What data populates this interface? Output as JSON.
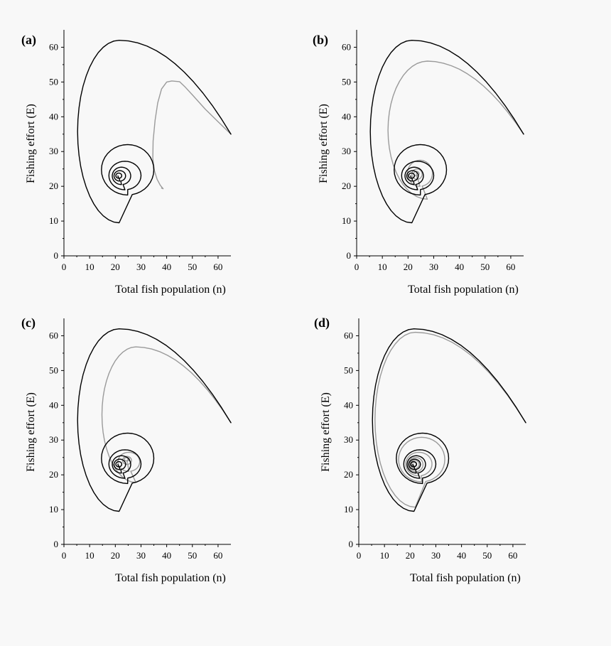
{
  "figure": {
    "background": "#f8f8f8",
    "primary_color": "#000000",
    "secondary_color": "#9a9a9a"
  },
  "chart_data": [
    {
      "type": "line",
      "panel_label": "(a)",
      "xlabel": "Total fish population (n)",
      "ylabel": "Fishing effort (E)",
      "xlim": [
        0,
        65
      ],
      "ylim": [
        0,
        65
      ],
      "xticks": [
        0,
        10,
        20,
        30,
        40,
        50,
        60
      ],
      "yticks": [
        0,
        10,
        20,
        30,
        40,
        50,
        60
      ],
      "series": [
        {
          "name": "black trajectory",
          "color": "#000000",
          "spiral": {
            "start": [
              65,
              35
            ],
            "peak": [
              21.5,
              62
            ],
            "minx": 5.3,
            "bottom": [
              21.5,
              9.5
            ],
            "turns": [
              [
                35.0,
                32.0,
                14.6,
                17.5
              ],
              [
                30.0,
                27.2,
                17.5,
                19.0
              ],
              [
                26.0,
                25.5,
                18.8,
                20.5
              ],
              [
                24.0,
                24.5,
                19.5,
                21.5
              ],
              [
                22.5,
                23.8,
                20.2,
                22.3
              ]
            ],
            "center": [
              21.0,
              23.0
            ]
          }
        },
        {
          "name": "grey trajectory",
          "color": "#9a9a9a",
          "points": [
            [
              65,
              35
            ],
            [
              60,
              38.6
            ],
            [
              55,
              42.2
            ],
            [
              50,
              46.3
            ],
            [
              47,
              48.7
            ],
            [
              45,
              50.1
            ],
            [
              42,
              50.3
            ],
            [
              40,
              50.0
            ],
            [
              38,
              48.0
            ],
            [
              36.5,
              44.0
            ],
            [
              35.5,
              39.0
            ],
            [
              34.7,
              33.0
            ],
            [
              34.6,
              28.0
            ],
            [
              35.2,
              24.5
            ],
            [
              36.3,
              22.0
            ],
            [
              37.5,
              20.3
            ],
            [
              38.4,
              19.5
            ],
            [
              38.6,
              19.3
            ],
            [
              38.0,
              19.5
            ]
          ]
        }
      ]
    },
    {
      "type": "line",
      "panel_label": "(b)",
      "xlabel": "Total fish population (n)",
      "ylabel": "Fishing effort (E)",
      "xlim": [
        0,
        65
      ],
      "ylim": [
        0,
        65
      ],
      "xticks": [
        0,
        10,
        20,
        30,
        40,
        50,
        60
      ],
      "yticks": [
        0,
        10,
        20,
        30,
        40,
        50,
        60
      ],
      "series": [
        {
          "name": "black trajectory",
          "color": "#000000",
          "spiral": {
            "start": [
              65,
              35
            ],
            "peak": [
              21.5,
              62
            ],
            "minx": 5.3,
            "bottom": [
              21.5,
              9.5
            ],
            "turns": [
              [
                35.0,
                32.0,
                14.6,
                17.5
              ],
              [
                30.0,
                27.2,
                17.5,
                19.0
              ],
              [
                26.0,
                25.5,
                18.8,
                20.5
              ],
              [
                24.0,
                24.5,
                19.5,
                21.5
              ],
              [
                22.5,
                23.8,
                20.2,
                22.3
              ]
            ],
            "center": [
              21.0,
              23.0
            ]
          }
        },
        {
          "name": "grey trajectory",
          "color": "#9a9a9a",
          "spiral": {
            "start": [
              65,
              35
            ],
            "peak": [
              27.5,
              56
            ],
            "minx": 12.2,
            "bottom": [
              23.5,
              16.3
            ],
            "turns": [
              [
                29.5,
                27.5,
                19.8,
                20.0
              ],
              [
                25.5,
                25.0,
                21.5,
                22.0
              ],
              [
                24.3,
                24.3,
                22.2,
                23.0
              ]
            ],
            "center": [
              23.3,
              23.7
            ]
          }
        }
      ]
    },
    {
      "type": "line",
      "panel_label": "(c)",
      "xlabel": "Total fish population (n)",
      "ylabel": "Fishing effort (E)",
      "xlim": [
        0,
        65
      ],
      "ylim": [
        0,
        65
      ],
      "xticks": [
        0,
        10,
        20,
        30,
        40,
        50,
        60
      ],
      "yticks": [
        0,
        10,
        20,
        30,
        40,
        50,
        60
      ],
      "series": [
        {
          "name": "black trajectory",
          "color": "#000000",
          "spiral": {
            "start": [
              65,
              35
            ],
            "peak": [
              21.5,
              62
            ],
            "minx": 5.3,
            "bottom": [
              21.5,
              9.5
            ],
            "turns": [
              [
                35.0,
                32.0,
                14.6,
                17.5
              ],
              [
                30.0,
                27.2,
                17.5,
                19.0
              ],
              [
                26.0,
                25.5,
                18.8,
                20.5
              ],
              [
                24.0,
                24.5,
                19.5,
                21.5
              ],
              [
                22.5,
                23.8,
                20.2,
                22.3
              ]
            ],
            "center": [
              21.0,
              23.0
            ]
          }
        },
        {
          "name": "grey trajectory",
          "color": "#9a9a9a",
          "spiral": {
            "start": [
              65,
              35
            ],
            "peak": [
              28.0,
              56.8
            ],
            "minx": 14.8,
            "bottom": [
              23.5,
              17.8
            ],
            "turns": [
              [
                29.5,
                26.5,
                21.0,
                21.0
              ],
              [
                26.3,
                25.3,
                22.8,
                23.0
              ],
              [
                25.5,
                25.0,
                23.5,
                24.0
              ]
            ],
            "center": [
              25.0,
              24.5
            ]
          }
        }
      ]
    },
    {
      "type": "line",
      "panel_label": "(d)",
      "xlabel": "Total fish population (n)",
      "ylabel": "Fishing effort (E)",
      "xlim": [
        0,
        65
      ],
      "ylim": [
        0,
        65
      ],
      "xticks": [
        0,
        10,
        20,
        30,
        40,
        50,
        60
      ],
      "yticks": [
        0,
        10,
        20,
        30,
        40,
        50,
        60
      ],
      "series": [
        {
          "name": "black trajectory",
          "color": "#000000",
          "spiral": {
            "start": [
              65,
              35
            ],
            "peak": [
              21.5,
              62
            ],
            "minx": 5.3,
            "bottom": [
              21.5,
              9.5
            ],
            "turns": [
              [
                35.0,
                32.0,
                14.6,
                17.5
              ],
              [
                30.0,
                27.2,
                17.5,
                19.0
              ],
              [
                26.0,
                25.5,
                18.8,
                20.5
              ],
              [
                24.0,
                24.5,
                19.5,
                21.5
              ],
              [
                22.5,
                23.8,
                20.2,
                22.3
              ]
            ],
            "center": [
              21.0,
              23.0
            ]
          }
        },
        {
          "name": "grey trajectory",
          "color": "#9a9a9a",
          "spiral": {
            "start": [
              65,
              35
            ],
            "peak": [
              22.0,
              61.0
            ],
            "minx": 6.3,
            "bottom": [
              21.8,
              10.7
            ],
            "turns": [
              [
                33.5,
                30.8,
                15.5,
                18.0
              ],
              [
                28.5,
                26.5,
                18.3,
                19.7
              ],
              [
                25.0,
                25.0,
                19.3,
                20.9
              ],
              [
                23.5,
                24.2,
                20.0,
                21.8
              ],
              [
                22.4,
                23.6,
                20.5,
                22.5
              ]
            ],
            "center": [
              21.2,
              23.1
            ]
          }
        }
      ]
    }
  ]
}
